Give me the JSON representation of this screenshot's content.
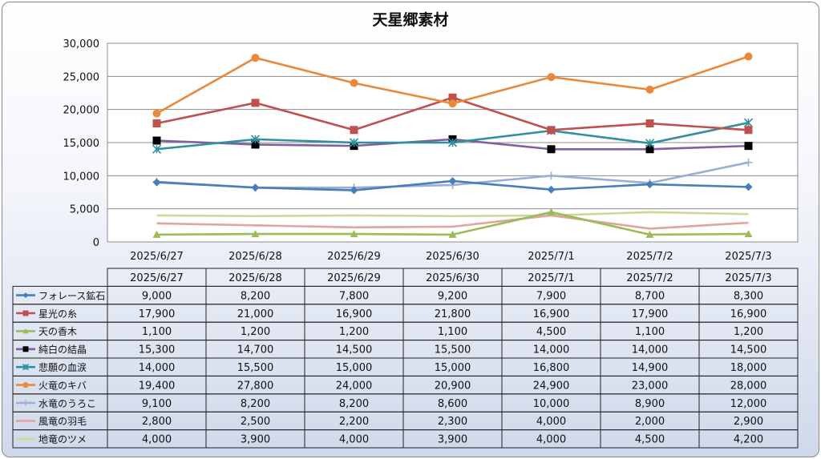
{
  "chart_data": {
    "type": "line",
    "title": "天星郷素材",
    "xlabel": "",
    "ylabel": "",
    "ylim": [
      0,
      30000
    ],
    "yticks": [
      "0",
      "5,000",
      "10,000",
      "15,000",
      "20,000",
      "25,000",
      "30,000"
    ],
    "grid": "horizontal",
    "legend": "data-table",
    "categories": [
      "2025/6/27",
      "2025/6/28",
      "2025/6/29",
      "2025/6/30",
      "2025/7/1",
      "2025/7/2",
      "2025/7/3"
    ],
    "series": [
      {
        "name": "フォレース鉱石",
        "color": "#4a7ebb",
        "marker": "diamond",
        "values": [
          9000,
          8200,
          7800,
          9200,
          7900,
          8700,
          8300
        ],
        "labels": [
          "9,000",
          "8,200",
          "7,800",
          "9,200",
          "7,900",
          "8,700",
          "8,300"
        ]
      },
      {
        "name": "星光の糸",
        "color": "#c0504d",
        "marker": "square",
        "values": [
          17900,
          21000,
          16900,
          21800,
          16900,
          17900,
          16900
        ],
        "labels": [
          "17,900",
          "21,000",
          "16,900",
          "21,800",
          "16,900",
          "17,900",
          "16,900"
        ]
      },
      {
        "name": "天の香木",
        "color": "#9bbb59",
        "marker": "triangle",
        "values": [
          1100,
          1200,
          1200,
          1100,
          4500,
          1100,
          1200
        ],
        "labels": [
          "1,100",
          "1,200",
          "1,200",
          "1,100",
          "4,500",
          "1,100",
          "1,200"
        ]
      },
      {
        "name": "純白の結晶",
        "color": "#7f5f9f",
        "marker": "blacksquare",
        "values": [
          15300,
          14700,
          14500,
          15500,
          14000,
          14000,
          14500
        ],
        "labels": [
          "15,300",
          "14,700",
          "14,500",
          "15,500",
          "14,000",
          "14,000",
          "14,500"
        ]
      },
      {
        "name": "悲願の血涙",
        "color": "#31909f",
        "marker": "asterisk",
        "values": [
          14000,
          15500,
          15000,
          15000,
          16800,
          14900,
          18000
        ],
        "labels": [
          "14,000",
          "15,500",
          "15,000",
          "15,000",
          "16,800",
          "14,900",
          "18,000"
        ]
      },
      {
        "name": "火竜のキバ",
        "color": "#e8893b",
        "marker": "circle",
        "values": [
          19400,
          27800,
          24000,
          20900,
          24900,
          23000,
          28000
        ],
        "labels": [
          "19,400",
          "27,800",
          "24,000",
          "20,900",
          "24,900",
          "23,000",
          "28,000"
        ]
      },
      {
        "name": "水竜のうろこ",
        "color": "#9aaed6",
        "marker": "plus",
        "values": [
          9100,
          8200,
          8200,
          8600,
          10000,
          8900,
          12000
        ],
        "labels": [
          "9,100",
          "8,200",
          "8,200",
          "8,600",
          "10,000",
          "8,900",
          "12,000"
        ]
      },
      {
        "name": "風竜の羽毛",
        "color": "#e3a3a1",
        "marker": "none",
        "values": [
          2800,
          2500,
          2200,
          2300,
          4000,
          2000,
          2900
        ],
        "labels": [
          "2,800",
          "2,500",
          "2,200",
          "2,300",
          "4,000",
          "2,000",
          "2,900"
        ]
      },
      {
        "name": "地竜のツメ",
        "color": "#c5dc96",
        "marker": "none",
        "values": [
          4000,
          3900,
          4000,
          3900,
          4000,
          4500,
          4200
        ],
        "labels": [
          "4,000",
          "3,900",
          "4,000",
          "3,900",
          "4,000",
          "4,500",
          "4,200"
        ]
      }
    ]
  }
}
